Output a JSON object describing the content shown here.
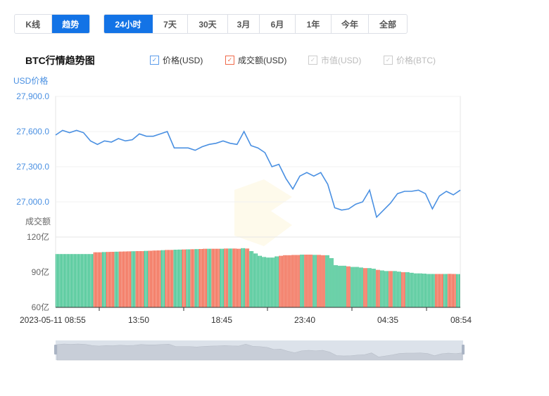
{
  "view_tabs": [
    {
      "label": "K线",
      "active": false
    },
    {
      "label": "趋势",
      "active": true
    }
  ],
  "range_tabs": [
    {
      "label": "24小时",
      "active": true
    },
    {
      "label": "7天"
    },
    {
      "label": "30天"
    },
    {
      "label": "3月"
    },
    {
      "label": "6月"
    },
    {
      "label": "1年"
    },
    {
      "label": "今年"
    },
    {
      "label": "全部"
    }
  ],
  "title": "BTC行情趋势图",
  "legend": [
    {
      "label": "价格(USD)",
      "checked": true,
      "color": "#5b9bea"
    },
    {
      "label": "成交额(USD)",
      "checked": true,
      "color": "#f06a4a"
    },
    {
      "label": "市值(USD)",
      "checked": false,
      "color": "#cccccc"
    },
    {
      "label": "价格(BTC)",
      "checked": false,
      "color": "#cccccc"
    }
  ],
  "chart_data": [
    {
      "type": "line",
      "ylabel": "USD价格",
      "ylim": [
        27000,
        27900
      ],
      "yticks": [
        "27,900.0",
        "27,600.0",
        "27,300.0",
        "27,000.0"
      ],
      "ytick_values": [
        27900,
        27600,
        27300,
        27000
      ],
      "x_start": "2023-05-11 08:55",
      "x_end": "08:54",
      "color": "#4a90e2",
      "grid": true,
      "values": [
        27570,
        27610,
        27590,
        27610,
        27590,
        27520,
        27490,
        27520,
        27510,
        27540,
        27520,
        27530,
        27580,
        27560,
        27560,
        27580,
        27600,
        27460,
        27460,
        27460,
        27440,
        27470,
        27490,
        27500,
        27520,
        27500,
        27490,
        27600,
        27480,
        27460,
        27420,
        27300,
        27320,
        27200,
        27110,
        27220,
        27250,
        27220,
        27250,
        27150,
        26950,
        26930,
        26940,
        26980,
        27000,
        27100,
        26870,
        26930,
        26990,
        27070,
        27090,
        27090,
        27100,
        27070,
        26940,
        27050,
        27090,
        27060,
        27100
      ]
    },
    {
      "type": "bar",
      "ylabel": "成交额",
      "unit": "亿",
      "ylim": [
        60,
        120
      ],
      "yticks": [
        "120亿",
        "90亿",
        "60亿"
      ],
      "ytick_values": [
        120,
        90,
        60
      ],
      "up_color": "#f0583c",
      "down_color": "#2dbd84",
      "values": [
        105.5,
        105.5,
        105.5,
        105.5,
        105.5,
        105.5,
        105.5,
        105.5,
        105.5,
        107,
        107,
        107.2,
        107.3,
        107.4,
        107.5,
        107.6,
        107.7,
        107.8,
        107.9,
        108,
        108,
        108.2,
        108.3,
        108.5,
        108.6,
        108.8,
        109,
        109,
        109.2,
        109.3,
        109.4,
        109.5,
        109.6,
        109.7,
        109.8,
        110,
        110,
        110,
        110,
        110,
        110.2,
        110.2,
        110.2,
        110,
        110.5,
        110.2,
        108,
        106,
        104,
        103,
        102.5,
        102.5,
        103.5,
        104,
        104.5,
        104.5,
        104.7,
        104.7,
        105,
        105,
        105,
        104.8,
        104.8,
        104.5,
        104.5,
        102,
        96,
        95.5,
        95.5,
        95,
        94.5,
        94.5,
        94,
        93.5,
        93.5,
        93,
        92,
        91.5,
        91,
        91,
        91,
        90.5,
        90,
        90,
        89.5,
        89,
        89,
        88.8,
        88.5,
        88.5,
        88.5,
        88.5,
        88.5,
        88.6,
        88.5,
        88.4
      ],
      "directions": "gggggggggrrgrrgrrrgrrgrrrgrrggrgrgrrgrrgrgrrgrgggggggrrrrrgrrgrrgggggrgggrggrggrggrgggggggrrgrrgg"
    }
  ],
  "x_labels": [
    "2023-05-11 08:55",
    "13:50",
    "18:45",
    "23:40",
    "04:35",
    "08:54"
  ]
}
